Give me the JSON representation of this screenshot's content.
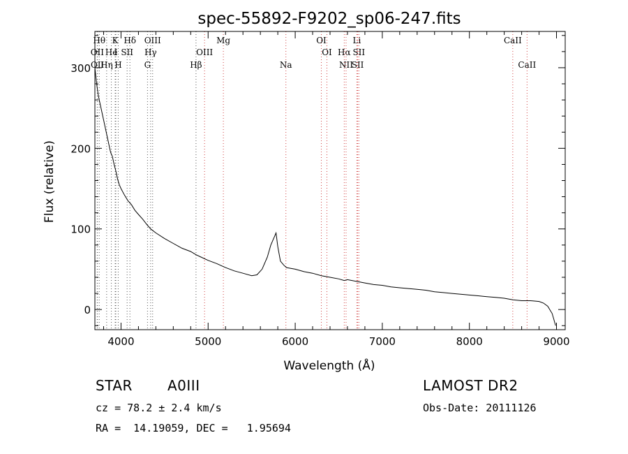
{
  "chart_data": {
    "type": "line",
    "title": "spec-55892-F9202_sp06-247.fits",
    "xlabel": "Wavelength (Å)",
    "ylabel": "Flux (relative)",
    "xlim": [
      3700,
      9100
    ],
    "ylim": [
      -25,
      345
    ],
    "xticks": [
      4000,
      5000,
      6000,
      7000,
      8000,
      9000
    ],
    "yticks": [
      0,
      100,
      200,
      300
    ],
    "grid": false,
    "legend": "none",
    "series": [
      {
        "x": [
          3700,
          3720,
          3740,
          3760,
          3780,
          3800,
          3820,
          3840,
          3860,
          3880,
          3900,
          3920,
          3940,
          3960,
          3980,
          4000,
          4040,
          4080,
          4120,
          4160,
          4200,
          4250,
          4300,
          4340,
          4400,
          4500,
          4600,
          4700,
          4800,
          4861,
          4900,
          5000,
          5100,
          5200,
          5300,
          5400,
          5500,
          5560,
          5620,
          5680,
          5720,
          5760,
          5780,
          5800,
          5830,
          5870,
          5900,
          5950,
          6000,
          6100,
          6200,
          6300,
          6400,
          6500,
          6563,
          6600,
          6700,
          6800,
          6900,
          7000,
          7100,
          7200,
          7300,
          7400,
          7500,
          7600,
          7700,
          7800,
          7900,
          8000,
          8100,
          8200,
          8300,
          8400,
          8500,
          8600,
          8700,
          8800,
          8850,
          8900,
          8950,
          8990
        ],
        "y": [
          300,
          280,
          265,
          255,
          245,
          235,
          225,
          215,
          205,
          195,
          190,
          180,
          172,
          162,
          155,
          150,
          142,
          135,
          130,
          123,
          118,
          112,
          105,
          100,
          95,
          88,
          82,
          76,
          72,
          68,
          66,
          61,
          57,
          52,
          48,
          45,
          42,
          43,
          50,
          65,
          80,
          90,
          95,
          78,
          60,
          55,
          52,
          51,
          50,
          47,
          45,
          42,
          40,
          38,
          36,
          37,
          35,
          33,
          31,
          30,
          28,
          27,
          26,
          25,
          24,
          22,
          21,
          20,
          19,
          18,
          17,
          16,
          15,
          14,
          12,
          11,
          11,
          10,
          8,
          4,
          -5,
          -20
        ]
      }
    ],
    "line_markers": [
      {
        "label": "Hθ",
        "x": 3750,
        "row": 0
      },
      {
        "label": "K",
        "x": 3933,
        "row": 0
      },
      {
        "label": "Hδ",
        "x": 4102,
        "row": 0
      },
      {
        "label": "OIII",
        "x": 4363,
        "row": 0
      },
      {
        "label": "Mg",
        "x": 5175,
        "row": 0
      },
      {
        "label": "OI",
        "x": 6300,
        "row": 0
      },
      {
        "label": "Li",
        "x": 6708,
        "row": 0
      },
      {
        "label": "CaII",
        "x": 8498,
        "row": 0
      },
      {
        "label": "OII",
        "x": 3727,
        "row": 1
      },
      {
        "label": "He",
        "x": 3889,
        "row": 1
      },
      {
        "label": "I",
        "x": 3940,
        "row": 1
      },
      {
        "label": "SII",
        "x": 4070,
        "row": 1
      },
      {
        "label": "Hγ",
        "x": 4340,
        "row": 1
      },
      {
        "label": "OIII",
        "x": 4959,
        "row": 1
      },
      {
        "label": "OI",
        "x": 6364,
        "row": 1
      },
      {
        "label": "Hα",
        "x": 6563,
        "row": 1
      },
      {
        "label": "SII",
        "x": 6731,
        "row": 1
      },
      {
        "label": "OII",
        "x": 3729,
        "row": 2
      },
      {
        "label": "Hη",
        "x": 3835,
        "row": 2
      },
      {
        "label": "H",
        "x": 3968,
        "row": 2
      },
      {
        "label": "G",
        "x": 4304,
        "row": 2
      },
      {
        "label": "Hβ",
        "x": 4861,
        "row": 2
      },
      {
        "label": "Na",
        "x": 5893,
        "row": 2
      },
      {
        "label": "NII",
        "x": 6584,
        "row": 2
      },
      {
        "label": "SII",
        "x": 6717,
        "row": 2
      },
      {
        "label": "CaII",
        "x": 8662,
        "row": 2
      }
    ]
  },
  "info": {
    "class": "STAR",
    "subclass": "A0III",
    "survey": "LAMOST DR2",
    "cz": "cz = 78.2 ± 2.4 km/s",
    "obsdate": "Obs-Date: 20111126",
    "radec": "RA =  14.19059, DEC =   1.95694"
  }
}
